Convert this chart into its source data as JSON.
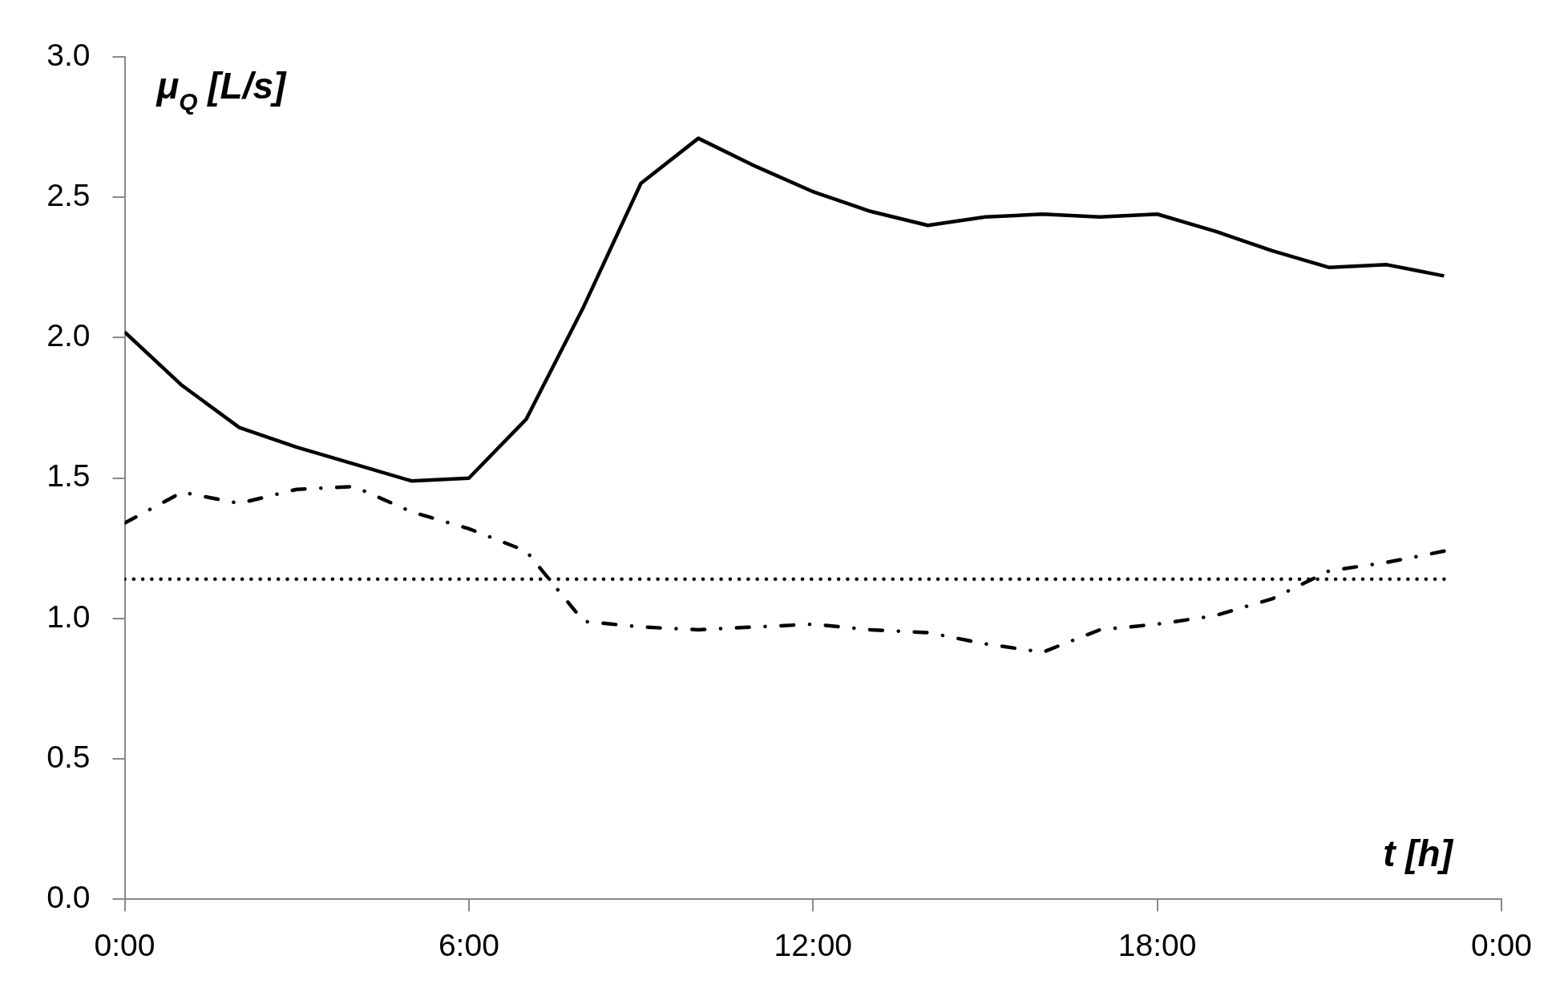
{
  "chart_data": {
    "type": "line",
    "xlabel": "t [h]",
    "ylabel": "μ$_{Q}$ [L/s]",
    "x": [
      0,
      1,
      2,
      3,
      4,
      5,
      6,
      7,
      8,
      9,
      10,
      11,
      12,
      13,
      14,
      15,
      16,
      17,
      18,
      19,
      20,
      21,
      22,
      23
    ],
    "xlim": [
      0,
      24
    ],
    "xticks": [
      {
        "value": 0,
        "label": "0:00"
      },
      {
        "value": 6,
        "label": "6:00"
      },
      {
        "value": 12,
        "label": "12:00"
      },
      {
        "value": 18,
        "label": "18:00"
      },
      {
        "value": 24,
        "label": "0:00"
      }
    ],
    "ylim": [
      0,
      3
    ],
    "yticks": [
      {
        "value": 0,
        "label": "0.0"
      },
      0.5,
      {
        "value": 1,
        "label": "1.0"
      },
      1.5,
      {
        "value": 2,
        "label": "2.0"
      },
      2.5,
      {
        "value": 3,
        "label": "3.0"
      }
    ],
    "marker": "none",
    "series": [
      {
        "color": "#000000",
        "line_style": "solid",
        "values": [
          2.02,
          1.83,
          1.68,
          1.61,
          1.55,
          1.49,
          1.5,
          1.71,
          2.11,
          2.55,
          2.71,
          2.61,
          2.52,
          2.45,
          2.4,
          2.43,
          2.44,
          2.43,
          2.44,
          2.38,
          2.31,
          2.25,
          2.26,
          2.22
        ]
      },
      {
        "color": "#000000",
        "line_style": "dashdot",
        "values": [
          1.34,
          1.45,
          1.41,
          1.46,
          1.47,
          1.38,
          1.32,
          1.24,
          0.99,
          0.97,
          0.96,
          0.97,
          0.98,
          0.96,
          0.95,
          0.91,
          0.88,
          0.96,
          0.98,
          1.01,
          1.07,
          1.17,
          1.2,
          1.24
        ]
      },
      {
        "color": "#000000",
        "line_style": "dotted",
        "values": [
          1.14,
          1.14,
          1.14,
          1.14,
          1.14,
          1.14,
          1.14,
          1.14,
          1.14,
          1.14,
          1.14,
          1.14,
          1.14,
          1.14,
          1.14,
          1.14,
          1.14,
          1.14,
          1.14,
          1.14,
          1.14,
          1.14,
          1.14,
          1.14
        ]
      }
    ]
  }
}
